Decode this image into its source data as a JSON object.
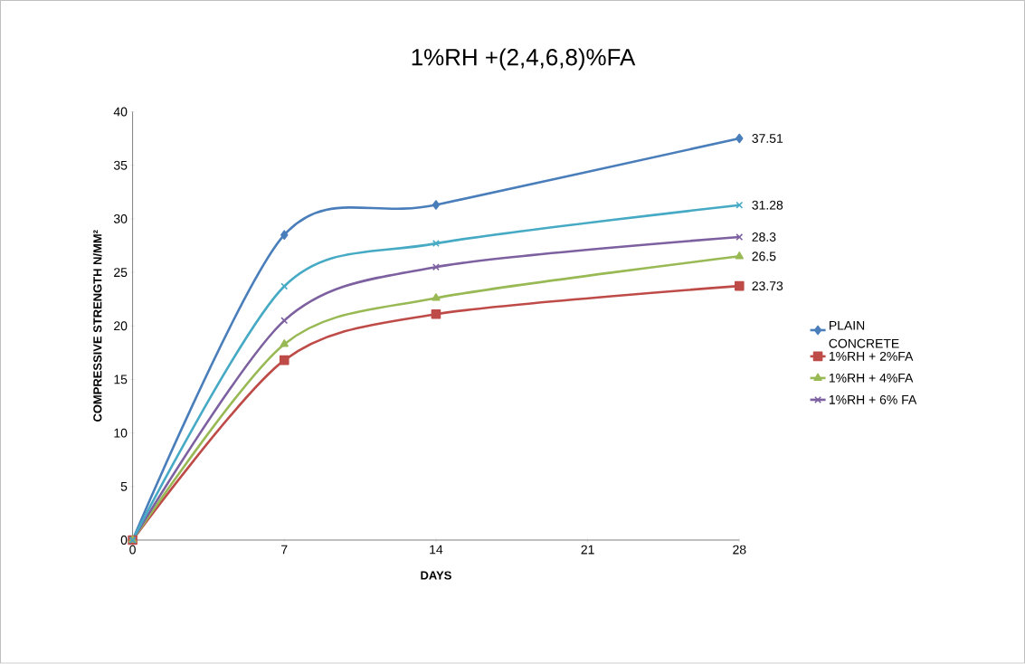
{
  "chart_data": {
    "type": "line",
    "title": "1%RH +(2,4,6,8)%FA",
    "xlabel": "DAYS",
    "ylabel": "COMPRESSIVE STRENGTH N/MM²",
    "x": [
      0,
      7,
      14,
      28
    ],
    "xlim": [
      0,
      28
    ],
    "xticks": [
      0,
      7,
      14,
      21,
      28
    ],
    "ylim": [
      0,
      40
    ],
    "yticks": [
      0,
      5,
      10,
      15,
      20,
      25,
      30,
      35,
      40
    ],
    "series": [
      {
        "name": "PLAIN CONCRETE",
        "color": "#4a7ebb",
        "marker": "diamond",
        "values": [
          0,
          28.5,
          31.3,
          37.51
        ],
        "value_labels": [
          null,
          null,
          null,
          "37.51"
        ]
      },
      {
        "name": "1%RH + 2%FA",
        "color": "#be4b48",
        "marker": "square",
        "values": [
          0,
          16.8,
          21.1,
          23.73
        ],
        "value_labels": [
          null,
          null,
          null,
          "23.73"
        ]
      },
      {
        "name": "1%RH + 4%FA",
        "color": "#98b954",
        "marker": "triangle",
        "values": [
          0,
          18.3,
          22.6,
          26.5
        ],
        "value_labels": [
          null,
          null,
          null,
          "26.5"
        ]
      },
      {
        "name": "1%RH + 6% FA",
        "color": "#7d60a0",
        "marker": "cross",
        "values": [
          0,
          20.5,
          25.5,
          28.3
        ],
        "value_labels": [
          null,
          null,
          null,
          "28.3"
        ]
      },
      {
        "color": "#46aac5",
        "marker": "cross",
        "values": [
          0,
          23.7,
          27.7,
          31.28
        ],
        "value_labels": [
          null,
          null,
          null,
          "31.28"
        ]
      }
    ],
    "legend": "right",
    "grid": false,
    "line_style": "solid"
  }
}
